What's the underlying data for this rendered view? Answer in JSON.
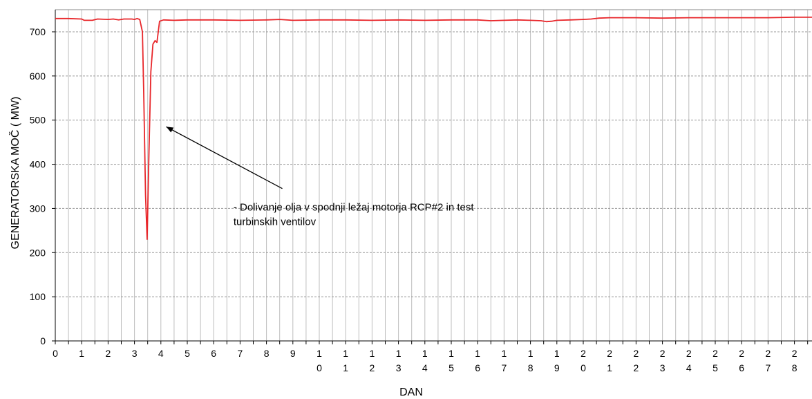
{
  "chart_data": {
    "type": "line",
    "title": "",
    "xlabel": "DAN",
    "ylabel": "GENERATORSKA MOČ  ( MW)",
    "xlim": [
      0,
      28.8
    ],
    "ylim": [
      0,
      740
    ],
    "yticks": [
      0,
      100,
      200,
      300,
      400,
      500,
      600,
      700
    ],
    "xtick_labels": [
      {
        "value": 0,
        "line1": "0",
        "line2": ""
      },
      {
        "value": 1,
        "line1": "1",
        "line2": ""
      },
      {
        "value": 2,
        "line1": "2",
        "line2": ""
      },
      {
        "value": 3,
        "line1": "3",
        "line2": ""
      },
      {
        "value": 4,
        "line1": "4",
        "line2": ""
      },
      {
        "value": 5,
        "line1": "5",
        "line2": ""
      },
      {
        "value": 6,
        "line1": "6",
        "line2": ""
      },
      {
        "value": 7,
        "line1": "7",
        "line2": ""
      },
      {
        "value": 8,
        "line1": "8",
        "line2": ""
      },
      {
        "value": 9,
        "line1": "9",
        "line2": ""
      },
      {
        "value": 10,
        "line1": "1",
        "line2": "0"
      },
      {
        "value": 11,
        "line1": "1",
        "line2": "1"
      },
      {
        "value": 12,
        "line1": "1",
        "line2": "2"
      },
      {
        "value": 13,
        "line1": "1",
        "line2": "3"
      },
      {
        "value": 14,
        "line1": "1",
        "line2": "4"
      },
      {
        "value": 15,
        "line1": "1",
        "line2": "5"
      },
      {
        "value": 16,
        "line1": "1",
        "line2": "6"
      },
      {
        "value": 17,
        "line1": "1",
        "line2": "7"
      },
      {
        "value": 18,
        "line1": "1",
        "line2": "8"
      },
      {
        "value": 19,
        "line1": "1",
        "line2": "9"
      },
      {
        "value": 20,
        "line1": "2",
        "line2": "0"
      },
      {
        "value": 21,
        "line1": "2",
        "line2": "1"
      },
      {
        "value": 22,
        "line1": "2",
        "line2": "2"
      },
      {
        "value": 23,
        "line1": "2",
        "line2": "3"
      },
      {
        "value": 24,
        "line1": "2",
        "line2": "4"
      },
      {
        "value": 25,
        "line1": "2",
        "line2": "5"
      },
      {
        "value": 26,
        "line1": "2",
        "line2": "6"
      },
      {
        "value": 27,
        "line1": "2",
        "line2": "7"
      },
      {
        "value": 28,
        "line1": "2",
        "line2": "8"
      }
    ],
    "grid": true,
    "series": [
      {
        "color": "#e8262a",
        "points": [
          [
            0,
            730
          ],
          [
            0.5,
            730
          ],
          [
            1.0,
            729
          ],
          [
            1.1,
            726
          ],
          [
            1.4,
            726
          ],
          [
            1.6,
            729
          ],
          [
            2.0,
            728
          ],
          [
            2.2,
            729
          ],
          [
            2.4,
            727
          ],
          [
            2.6,
            729
          ],
          [
            2.9,
            729
          ],
          [
            3.0,
            728
          ],
          [
            3.1,
            730
          ],
          [
            3.2,
            728
          ],
          [
            3.3,
            700
          ],
          [
            3.35,
            560
          ],
          [
            3.42,
            330
          ],
          [
            3.48,
            230
          ],
          [
            3.55,
            430
          ],
          [
            3.62,
            610
          ],
          [
            3.7,
            672
          ],
          [
            3.78,
            680
          ],
          [
            3.85,
            676
          ],
          [
            3.9,
            700
          ],
          [
            3.95,
            724
          ],
          [
            4.1,
            727
          ],
          [
            4.5,
            726
          ],
          [
            5.0,
            727
          ],
          [
            6.0,
            727
          ],
          [
            7.0,
            726
          ],
          [
            8.0,
            727
          ],
          [
            8.5,
            728
          ],
          [
            9.0,
            726
          ],
          [
            10.0,
            727
          ],
          [
            11.0,
            727
          ],
          [
            12.0,
            726
          ],
          [
            13.0,
            727
          ],
          [
            14.0,
            726
          ],
          [
            15.0,
            727
          ],
          [
            16.0,
            727
          ],
          [
            16.5,
            725
          ],
          [
            17.0,
            726
          ],
          [
            17.5,
            727
          ],
          [
            18.0,
            726
          ],
          [
            18.4,
            725
          ],
          [
            18.6,
            723
          ],
          [
            18.8,
            724
          ],
          [
            19.0,
            726
          ],
          [
            19.5,
            727
          ],
          [
            20.0,
            728
          ],
          [
            20.3,
            729
          ],
          [
            20.6,
            731
          ],
          [
            21.0,
            732
          ],
          [
            22.0,
            732
          ],
          [
            23.0,
            731
          ],
          [
            24.0,
            732
          ],
          [
            25.0,
            732
          ],
          [
            26.0,
            732
          ],
          [
            27.0,
            732
          ],
          [
            28.0,
            733
          ],
          [
            28.8,
            733
          ]
        ]
      }
    ],
    "annotation": {
      "lines": [
        "- Dolivanje olja v spodnji ležaj motorja RCP#2 in test",
        "turbinskih  ventilov"
      ],
      "text_anchor": [
        6.75,
        295
      ],
      "arrow_from": [
        8.6,
        345
      ],
      "arrow_to": [
        4.2,
        485
      ]
    }
  }
}
